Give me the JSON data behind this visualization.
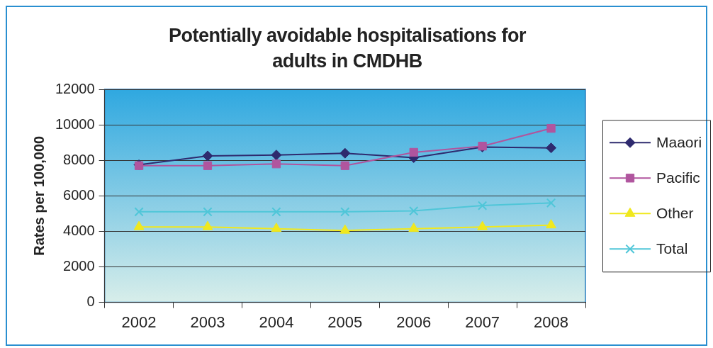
{
  "chart_data": {
    "type": "line",
    "title": "Potentially avoidable hospitalisations for adults in CMDHB",
    "ylabel": "Rates per 100,000",
    "categories": [
      "2002",
      "2003",
      "2004",
      "2005",
      "2006",
      "2007",
      "2008"
    ],
    "series": [
      {
        "name": "Maaori",
        "color": "#2e2a6e",
        "marker": "diamond",
        "values": [
          7750,
          8250,
          8300,
          8400,
          8150,
          8750,
          8700
        ]
      },
      {
        "name": "Pacific",
        "color": "#b0559e",
        "marker": "square",
        "values": [
          7700,
          7700,
          7800,
          7700,
          8450,
          8800,
          9800
        ]
      },
      {
        "name": "Other",
        "color": "#f0e81e",
        "marker": "triangle",
        "values": [
          4250,
          4250,
          4150,
          4050,
          4150,
          4250,
          4350
        ]
      },
      {
        "name": "Total",
        "color": "#4fc6d8",
        "marker": "cross",
        "values": [
          5100,
          5100,
          5100,
          5100,
          5150,
          5450,
          5600
        ]
      }
    ],
    "ylim": [
      0,
      12000
    ],
    "yticks": [
      0,
      2000,
      4000,
      6000,
      8000,
      10000,
      12000
    ],
    "grid": "y",
    "legend": "right"
  }
}
